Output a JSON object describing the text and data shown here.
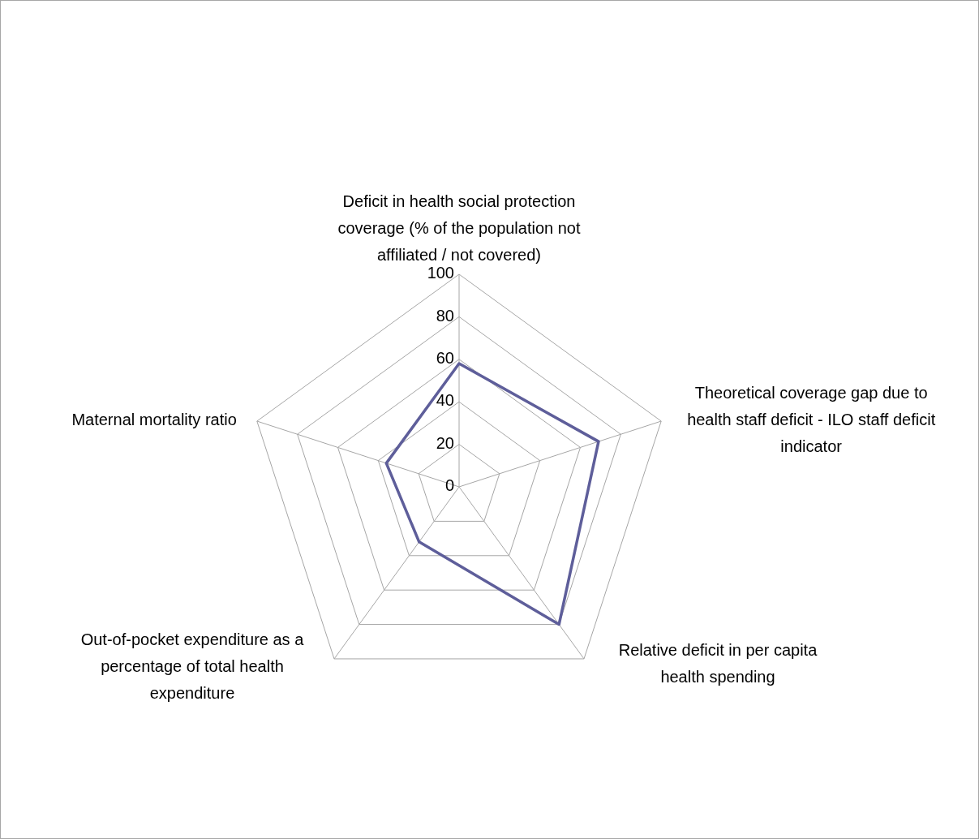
{
  "chart_data": {
    "type": "radar",
    "categories": [
      "Deficit in health social protection coverage (% of the population not affiliated / not covered)",
      "Theoretical coverage gap due to health staff deficit - ILO staff deficit indicator",
      "Relative deficit in per capita health spending",
      "Out-of-pocket expenditure as a percentage of total health expenditure",
      "Maternal mortality ratio"
    ],
    "series": [
      {
        "color": "#5e5e9a",
        "values": [
          58,
          69,
          80,
          32,
          36
        ]
      }
    ],
    "ylim": [
      0,
      100
    ],
    "yticks": [
      0,
      20,
      40,
      60,
      80,
      100
    ],
    "grid": true,
    "marker": "none",
    "line_style": "solid"
  }
}
